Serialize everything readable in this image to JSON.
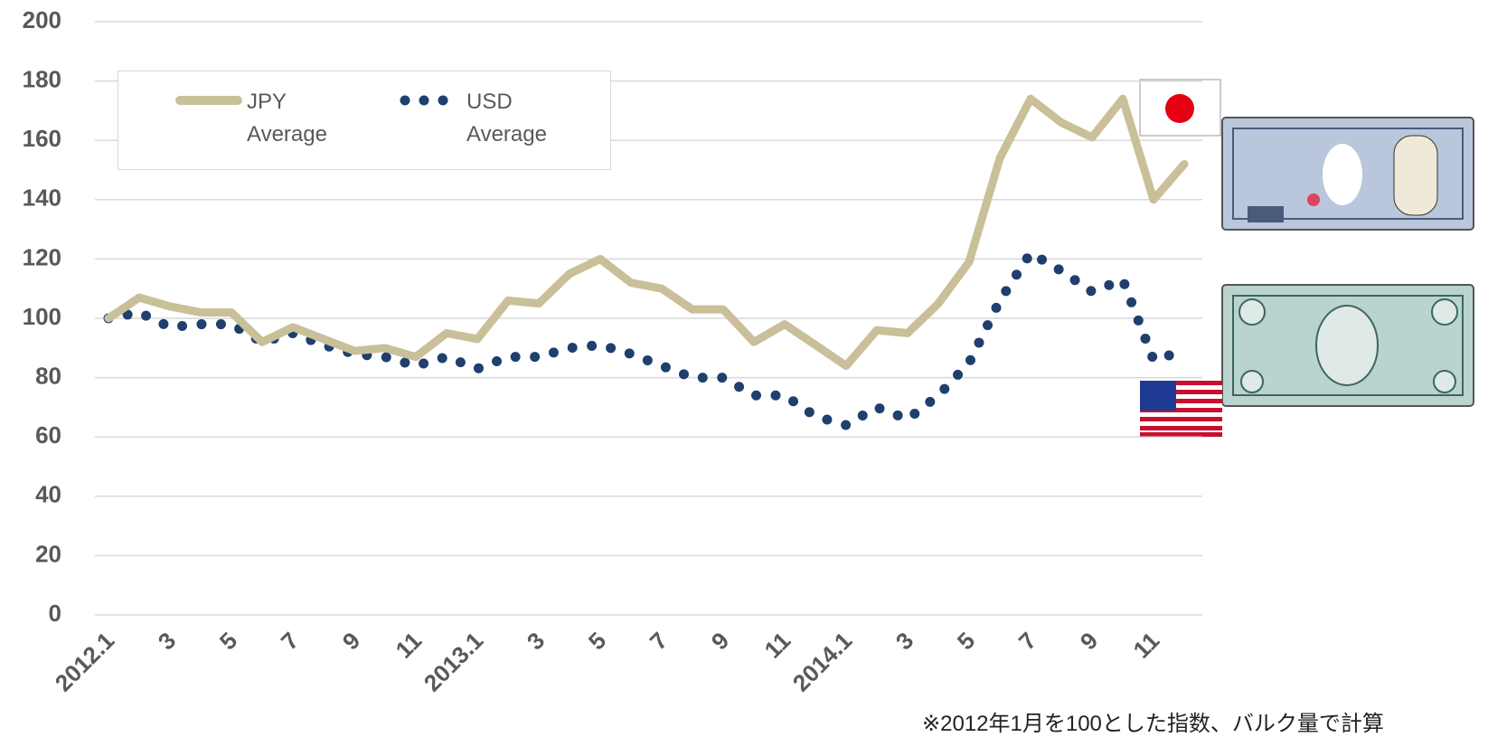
{
  "chart_data": {
    "type": "line",
    "categories": [
      "2012.1",
      null,
      "3",
      null,
      "5",
      null,
      "7",
      null,
      "9",
      null,
      "11",
      null,
      "2013.1",
      null,
      "3",
      null,
      "5",
      null,
      "7",
      null,
      "9",
      null,
      "11",
      null,
      "2014.1",
      null,
      "3",
      null,
      "5",
      null,
      "7",
      null,
      "9",
      null,
      "11",
      null
    ],
    "series": [
      {
        "name": "JPY Average",
        "color": "#c9bf98",
        "style": "solid",
        "values": [
          100,
          107,
          104,
          102,
          102,
          92,
          97,
          93,
          89,
          90,
          87,
          95,
          93,
          106,
          105,
          115,
          120,
          112,
          110,
          103,
          103,
          92,
          98,
          91,
          84,
          96,
          95,
          105,
          119,
          154,
          174,
          166,
          161,
          174,
          140,
          152
        ]
      },
      {
        "name": "USD Average",
        "color": "#1f3f6e",
        "style": "dotted",
        "values": [
          100,
          102,
          97,
          98,
          98,
          92,
          95,
          91,
          88,
          87,
          84,
          87,
          83,
          87,
          87,
          90,
          91,
          88,
          84,
          80,
          80,
          74,
          74,
          67,
          64,
          70,
          66,
          74,
          85,
          106,
          122,
          116,
          109,
          113,
          86,
          89
        ]
      }
    ],
    "ylim": [
      0,
      200
    ],
    "yticks": [
      0,
      20,
      40,
      60,
      80,
      100,
      120,
      140,
      160,
      180,
      200
    ],
    "grid": true,
    "legend": "upper left",
    "note": "※2012年1月を100とした指数、バルク量で計算"
  }
}
